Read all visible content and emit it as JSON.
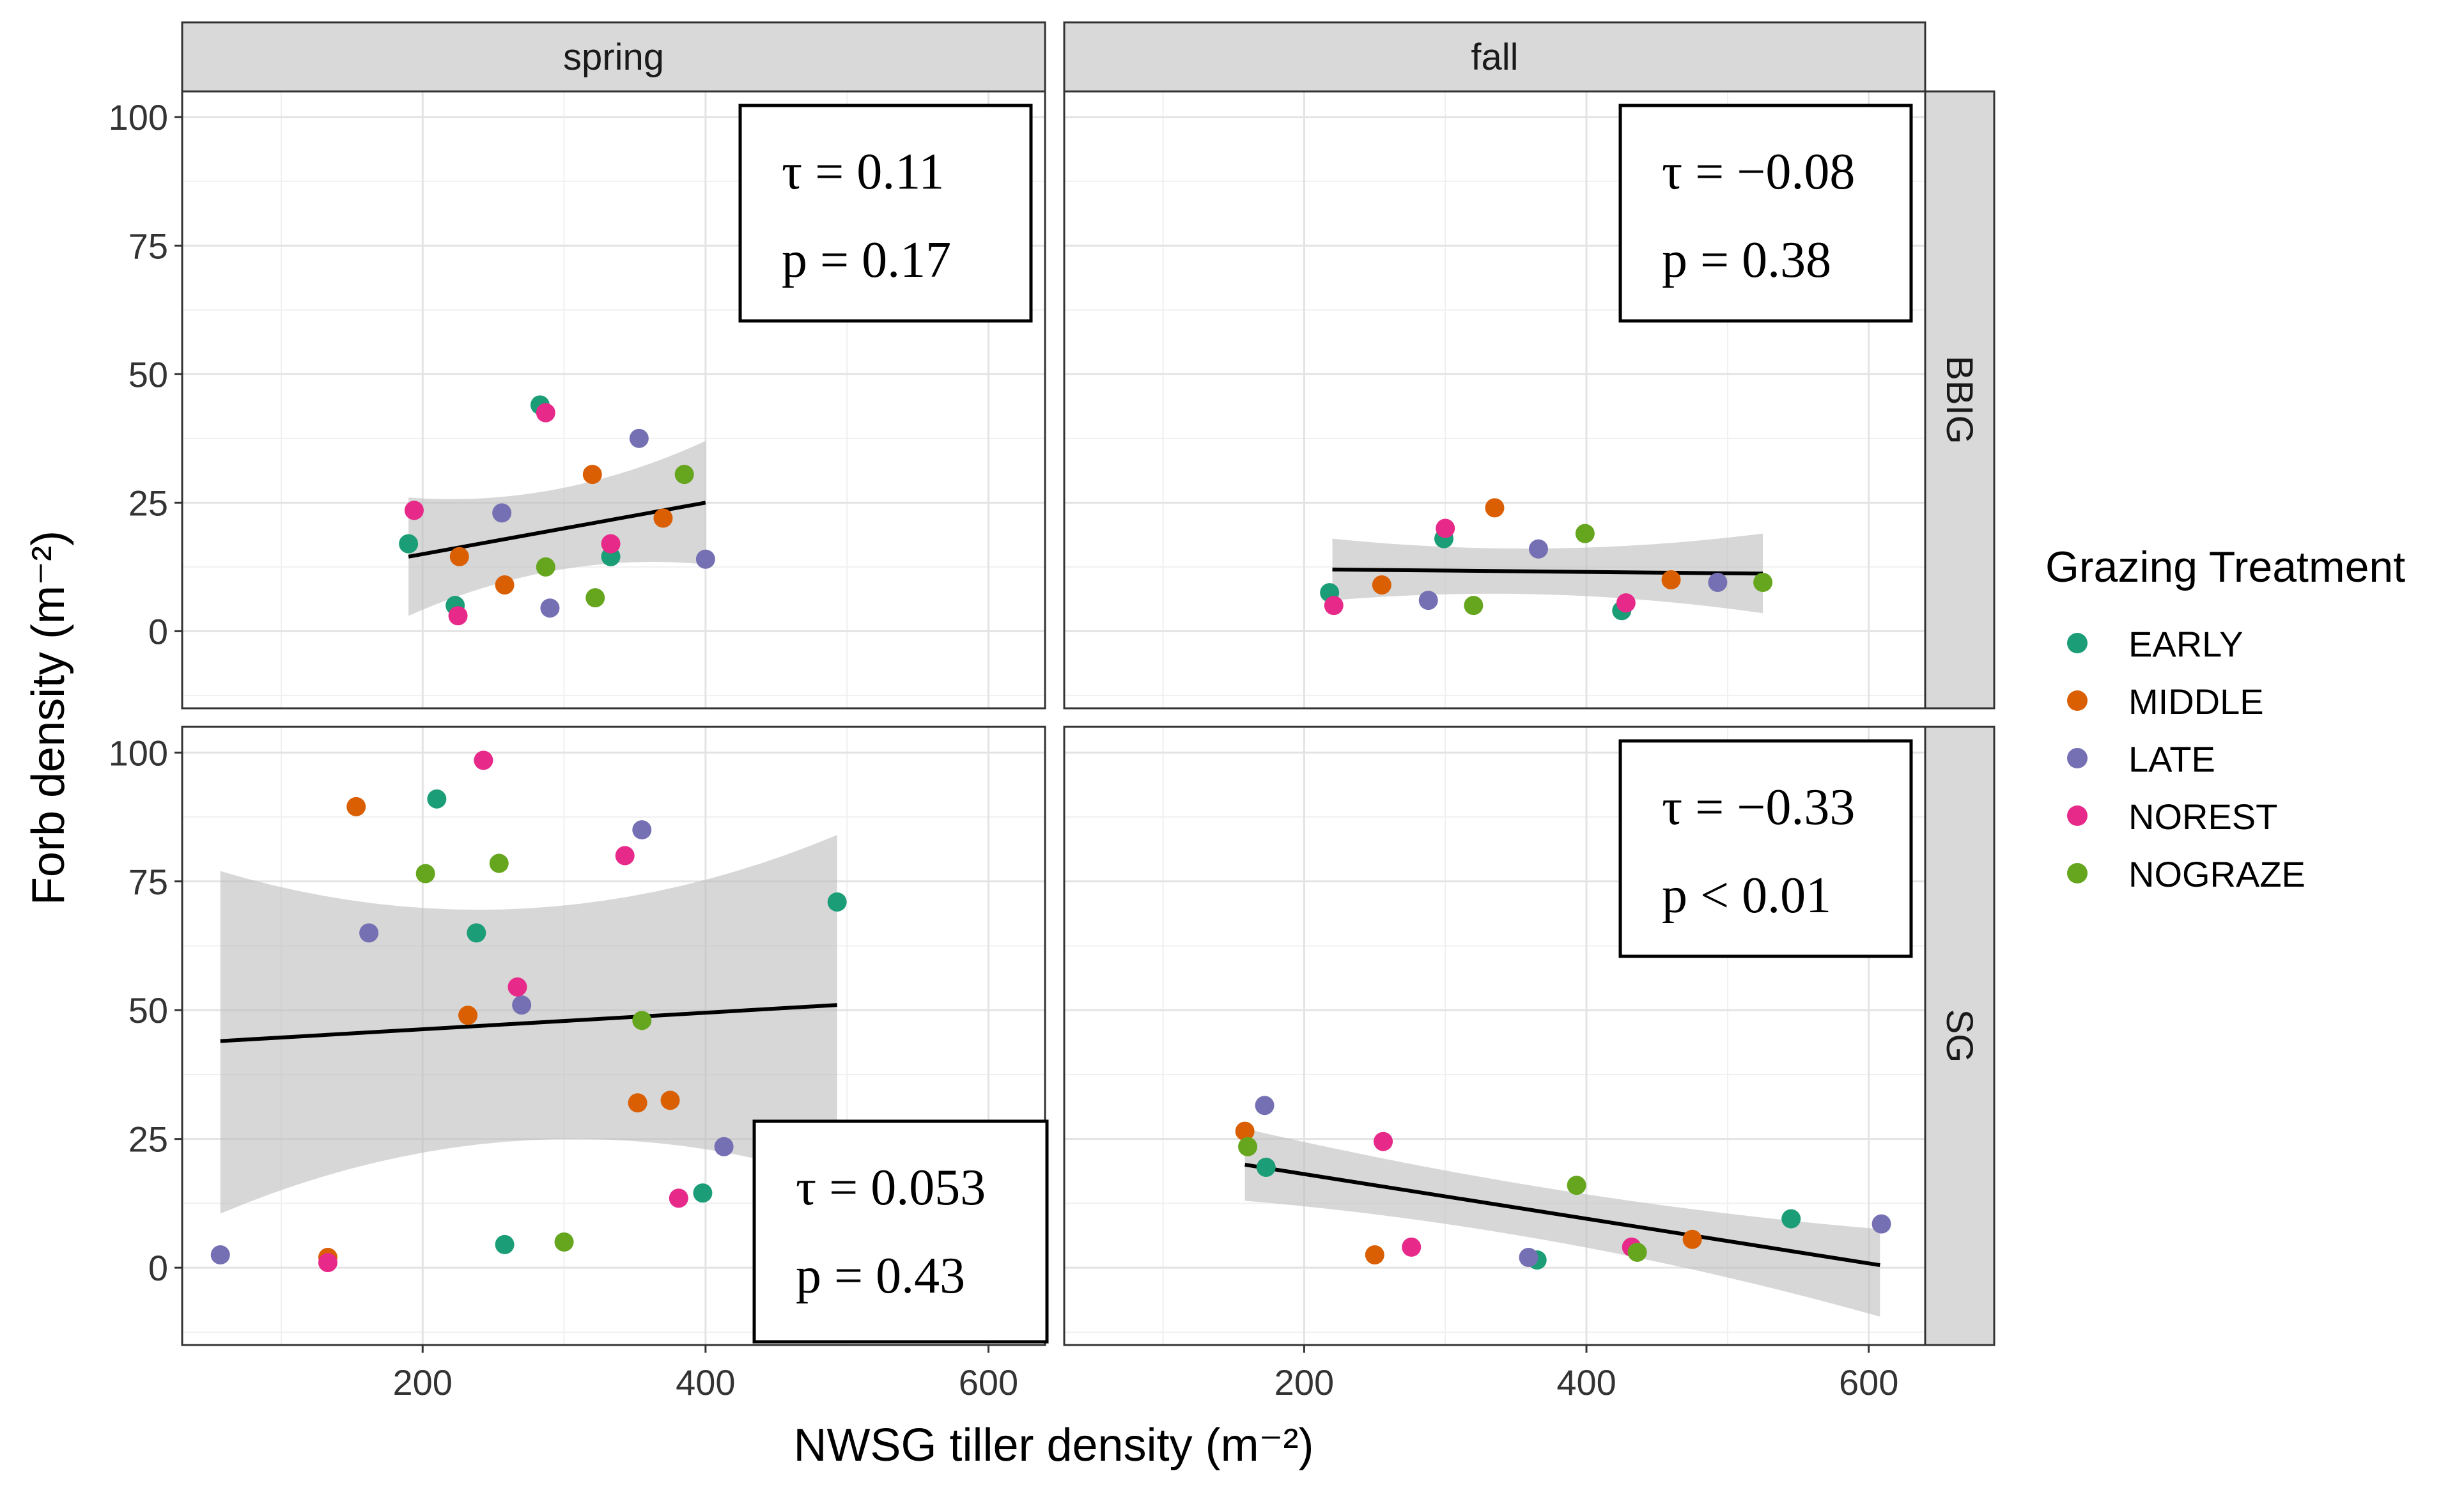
{
  "chart_data": {
    "type": "scatter",
    "xlabel": "NWSG tiller density (m⁻²)",
    "ylabel": "Forb density (m⁻²)",
    "xlim": [
      30,
      640
    ],
    "ylim": [
      -15,
      105
    ],
    "xticks": [
      200,
      400,
      600
    ],
    "yticks": [
      0,
      25,
      50,
      75,
      100
    ],
    "grid": true,
    "columns": [
      "spring",
      "fall"
    ],
    "rows": [
      "BBIG",
      "SG"
    ],
    "legend": {
      "title": "Grazing Treatment",
      "position": "right",
      "entries": [
        {
          "name": "EARLY",
          "color": "#1b9e77"
        },
        {
          "name": "MIDDLE",
          "color": "#d95f02"
        },
        {
          "name": "LATE",
          "color": "#7570b3"
        },
        {
          "name": "NOREST",
          "color": "#e7298a"
        },
        {
          "name": "NOGRAZE",
          "color": "#66a61e"
        }
      ]
    },
    "panels": [
      {
        "col": "spring",
        "row": "BBIG",
        "stats": {
          "tau": "τ = 0.11",
          "p": "p = 0.17"
        },
        "stats_box": "top-right",
        "trend": {
          "x": [
            190,
            400
          ],
          "y": [
            14.5,
            25
          ]
        },
        "band": {
          "upper": [
            26,
            37
          ],
          "lower": [
            3,
            13
          ]
        },
        "points": [
          {
            "x": 190,
            "y": 17,
            "g": "EARLY"
          },
          {
            "x": 223,
            "y": 5,
            "g": "EARLY"
          },
          {
            "x": 283,
            "y": 44,
            "g": "EARLY"
          },
          {
            "x": 333,
            "y": 14.5,
            "g": "EARLY"
          },
          {
            "x": 226,
            "y": 14.5,
            "g": "MIDDLE"
          },
          {
            "x": 258,
            "y": 9,
            "g": "MIDDLE"
          },
          {
            "x": 320,
            "y": 30.5,
            "g": "MIDDLE"
          },
          {
            "x": 370,
            "y": 22,
            "g": "MIDDLE"
          },
          {
            "x": 256,
            "y": 23,
            "g": "LATE"
          },
          {
            "x": 290,
            "y": 4.5,
            "g": "LATE"
          },
          {
            "x": 353,
            "y": 37.5,
            "g": "LATE"
          },
          {
            "x": 400,
            "y": 14,
            "g": "LATE"
          },
          {
            "x": 194,
            "y": 23.5,
            "g": "NOREST"
          },
          {
            "x": 225,
            "y": 3,
            "g": "NOREST"
          },
          {
            "x": 287,
            "y": 42.5,
            "g": "NOREST"
          },
          {
            "x": 333,
            "y": 17,
            "g": "NOREST"
          },
          {
            "x": 287,
            "y": 12.5,
            "g": "NOGRAZE"
          },
          {
            "x": 322,
            "y": 6.5,
            "g": "NOGRAZE"
          },
          {
            "x": 385,
            "y": 30.5,
            "g": "NOGRAZE"
          }
        ]
      },
      {
        "col": "fall",
        "row": "BBIG",
        "stats": {
          "tau": "τ = −0.08",
          "p": "p = 0.38"
        },
        "stats_box": "top-right",
        "trend": {
          "x": [
            220,
            525
          ],
          "y": [
            12,
            11.2
          ]
        },
        "band": {
          "upper": [
            18,
            19
          ],
          "lower": [
            6,
            3.5
          ]
        },
        "points": [
          {
            "x": 218,
            "y": 7.5,
            "g": "EARLY"
          },
          {
            "x": 299,
            "y": 18,
            "g": "EARLY"
          },
          {
            "x": 425,
            "y": 4,
            "g": "EARLY"
          },
          {
            "x": 255,
            "y": 9,
            "g": "MIDDLE"
          },
          {
            "x": 335,
            "y": 24,
            "g": "MIDDLE"
          },
          {
            "x": 460,
            "y": 10,
            "g": "MIDDLE"
          },
          {
            "x": 288,
            "y": 6,
            "g": "LATE"
          },
          {
            "x": 366,
            "y": 16,
            "g": "LATE"
          },
          {
            "x": 493,
            "y": 9.5,
            "g": "LATE"
          },
          {
            "x": 221,
            "y": 5,
            "g": "NOREST"
          },
          {
            "x": 300,
            "y": 20,
            "g": "NOREST"
          },
          {
            "x": 428,
            "y": 5.5,
            "g": "NOREST"
          },
          {
            "x": 320,
            "y": 5,
            "g": "NOGRAZE"
          },
          {
            "x": 399,
            "y": 19,
            "g": "NOGRAZE"
          },
          {
            "x": 525,
            "y": 9.5,
            "g": "NOGRAZE"
          }
        ]
      },
      {
        "col": "spring",
        "row": "SG",
        "stats": {
          "tau": "τ = 0.053",
          "p": "p = 0.43"
        },
        "stats_box": "bottom-right",
        "trend": {
          "x": [
            57,
            493
          ],
          "y": [
            44,
            51
          ]
        },
        "band": {
          "upper": [
            77,
            84
          ],
          "lower": [
            10.5,
            17
          ]
        },
        "points": [
          {
            "x": 210,
            "y": 91,
            "g": "EARLY"
          },
          {
            "x": 238,
            "y": 65,
            "g": "EARLY"
          },
          {
            "x": 258,
            "y": 4.5,
            "g": "EARLY"
          },
          {
            "x": 398,
            "y": 14.5,
            "g": "EARLY"
          },
          {
            "x": 493,
            "y": 71,
            "g": "EARLY"
          },
          {
            "x": 153,
            "y": 89.5,
            "g": "MIDDLE"
          },
          {
            "x": 133,
            "y": 2,
            "g": "MIDDLE"
          },
          {
            "x": 232,
            "y": 49,
            "g": "MIDDLE"
          },
          {
            "x": 352,
            "y": 32,
            "g": "MIDDLE"
          },
          {
            "x": 375,
            "y": 32.5,
            "g": "MIDDLE"
          },
          {
            "x": 57,
            "y": 2.5,
            "g": "LATE"
          },
          {
            "x": 162,
            "y": 65,
            "g": "LATE"
          },
          {
            "x": 270,
            "y": 51,
            "g": "LATE"
          },
          {
            "x": 355,
            "y": 85,
            "g": "LATE"
          },
          {
            "x": 413,
            "y": 23.5,
            "g": "LATE"
          },
          {
            "x": 133,
            "y": 1,
            "g": "NOREST"
          },
          {
            "x": 243,
            "y": 98.5,
            "g": "NOREST"
          },
          {
            "x": 267,
            "y": 54.5,
            "g": "NOREST"
          },
          {
            "x": 343,
            "y": 80,
            "g": "NOREST"
          },
          {
            "x": 381,
            "y": 13.5,
            "g": "NOREST"
          },
          {
            "x": 202,
            "y": 76.5,
            "g": "NOGRAZE"
          },
          {
            "x": 254,
            "y": 78.5,
            "g": "NOGRAZE"
          },
          {
            "x": 300,
            "y": 5,
            "g": "NOGRAZE"
          },
          {
            "x": 355,
            "y": 48,
            "g": "NOGRAZE"
          }
        ]
      },
      {
        "col": "fall",
        "row": "SG",
        "stats": {
          "tau": "τ = −0.33",
          "p": "p < 0.01"
        },
        "stats_box": "top-right",
        "trend": {
          "x": [
            158,
            608
          ],
          "y": [
            20,
            0.5
          ]
        },
        "band": {
          "upper": [
            27,
            7.5
          ],
          "lower": [
            13,
            -9.5
          ]
        },
        "points": [
          {
            "x": 173,
            "y": 19.5,
            "g": "EARLY"
          },
          {
            "x": 365,
            "y": 1.5,
            "g": "EARLY"
          },
          {
            "x": 545,
            "y": 9.5,
            "g": "EARLY"
          },
          {
            "x": 158,
            "y": 26.5,
            "g": "MIDDLE"
          },
          {
            "x": 250,
            "y": 2.5,
            "g": "MIDDLE"
          },
          {
            "x": 475,
            "y": 5.5,
            "g": "MIDDLE"
          },
          {
            "x": 172,
            "y": 31.5,
            "g": "LATE"
          },
          {
            "x": 359,
            "y": 2,
            "g": "LATE"
          },
          {
            "x": 609,
            "y": 8.5,
            "g": "LATE"
          },
          {
            "x": 256,
            "y": 24.5,
            "g": "NOREST"
          },
          {
            "x": 276,
            "y": 4,
            "g": "NOREST"
          },
          {
            "x": 432,
            "y": 4,
            "g": "NOREST"
          },
          {
            "x": 160,
            "y": 23.5,
            "g": "NOGRAZE"
          },
          {
            "x": 393,
            "y": 16,
            "g": "NOGRAZE"
          },
          {
            "x": 436,
            "y": 3,
            "g": "NOGRAZE"
          }
        ]
      }
    ]
  }
}
